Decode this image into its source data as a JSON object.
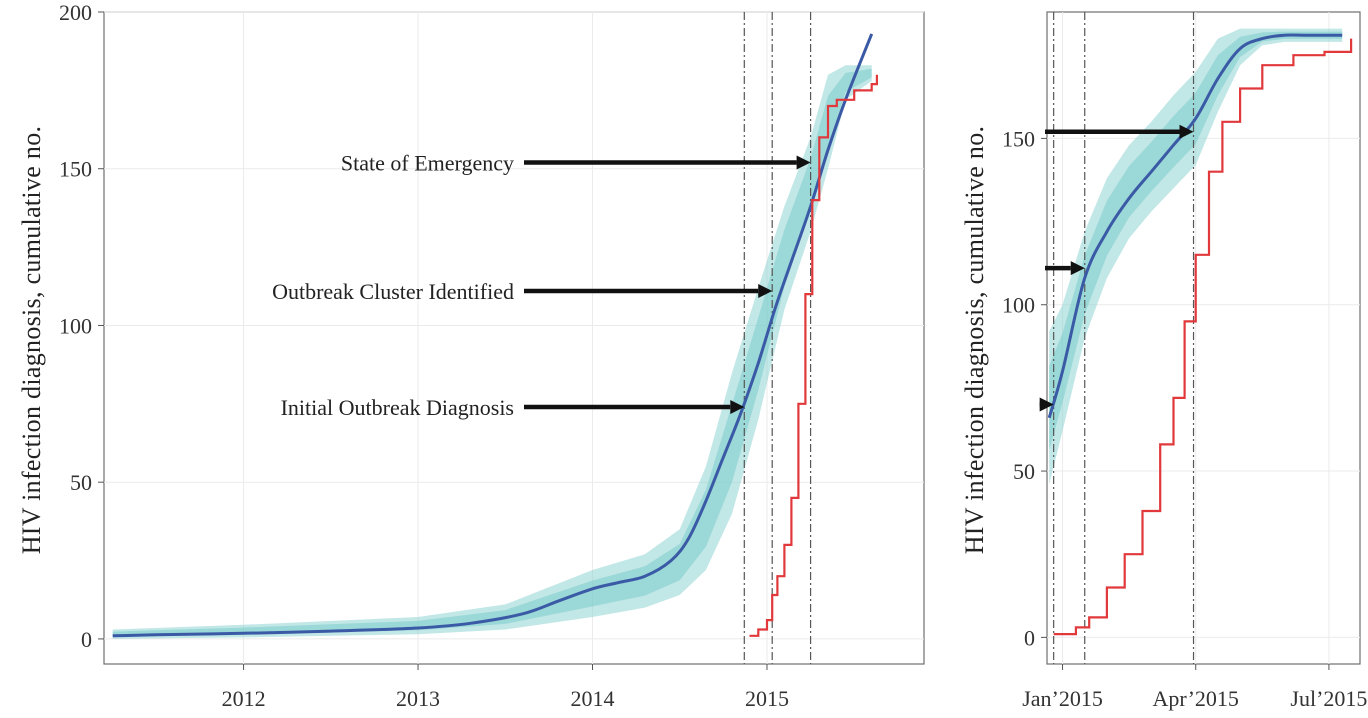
{
  "chart_data": [
    {
      "type": "line",
      "panel": "left",
      "ylabel": "HIV infection diagnosis, cumulative no.",
      "xlabel": "",
      "ylim": [
        -8,
        200
      ],
      "xlim": [
        2011.2,
        2015.9
      ],
      "grid": true,
      "x_ticks": [
        2012,
        2013,
        2014,
        2015
      ],
      "x_tick_labels": [
        "2012",
        "2013",
        "2014",
        "2015"
      ],
      "y_ticks": [
        0,
        50,
        100,
        150,
        200
      ],
      "y_tick_labels": [
        "0",
        "50",
        "100",
        "150",
        "200"
      ],
      "vertical_lines": [
        2014.87,
        2015.03,
        2015.25
      ],
      "series": [
        {
          "role": "estimated",
          "x": [
            2011.25,
            2011.5,
            2012.0,
            2012.5,
            2013.0,
            2013.3,
            2013.6,
            2013.8,
            2014.0,
            2014.15,
            2014.3,
            2014.45,
            2014.55,
            2014.65,
            2014.75,
            2014.85,
            2014.95,
            2015.05,
            2015.15,
            2015.25,
            2015.35,
            2015.45,
            2015.6
          ],
          "y": [
            1,
            1.3,
            1.8,
            2.5,
            3.5,
            5,
            8,
            12,
            16,
            18,
            20,
            25,
            32,
            44,
            58,
            72,
            88,
            106,
            122,
            138,
            156,
            172,
            193
          ]
        },
        {
          "role": "observed",
          "x": [
            2014.9,
            2014.95,
            2015.0,
            2015.03,
            2015.06,
            2015.1,
            2015.14,
            2015.18,
            2015.22,
            2015.26,
            2015.3,
            2015.35,
            2015.4,
            2015.5,
            2015.6,
            2015.63
          ],
          "y": [
            1,
            3,
            6,
            14,
            20,
            30,
            45,
            75,
            110,
            140,
            160,
            170,
            172,
            175,
            177,
            180
          ]
        }
      ],
      "uncertainty_band": {
        "x": [
          2011.25,
          2012.0,
          2013.0,
          2013.5,
          2014.0,
          2014.3,
          2014.5,
          2014.65,
          2014.8,
          2014.95,
          2015.1,
          2015.25,
          2015.35,
          2015.45,
          2015.6
        ],
        "lower": [
          0,
          0.5,
          1.5,
          3,
          7,
          10,
          14,
          22,
          40,
          70,
          105,
          130,
          150,
          172,
          178
        ],
        "upper": [
          3,
          4.5,
          7,
          11,
          22,
          27,
          35,
          55,
          85,
          112,
          138,
          160,
          180,
          183,
          183
        ]
      },
      "annotations": [
        {
          "text": "State of Emergency",
          "x": 2015.25,
          "y": 152
        },
        {
          "text": "Outbreak Cluster Identified",
          "x": 2015.03,
          "y": 111
        },
        {
          "text": "Initial Outbreak Diagnosis",
          "x": 2014.87,
          "y": 74
        }
      ]
    },
    {
      "type": "line",
      "panel": "right",
      "ylabel": "HIV infection diagnosis, cumulative no.",
      "xlabel": "",
      "ylim": [
        -8,
        188
      ],
      "xlim": [
        -0.35,
        6.7
      ],
      "grid": true,
      "x_ticks": [
        0,
        3,
        6
      ],
      "x_tick_labels": [
        "Jan’2015",
        "Apr’2015",
        "Jul’2015"
      ],
      "y_ticks": [
        0,
        50,
        100,
        150
      ],
      "y_tick_labels": [
        "0",
        "50",
        "100",
        "150"
      ],
      "vertical_lines": [
        -0.2,
        0.5,
        2.95
      ],
      "series": [
        {
          "role": "estimated",
          "x": [
            -0.3,
            0.0,
            0.5,
            1.0,
            1.5,
            2.0,
            2.5,
            3.0,
            3.5,
            4.0,
            4.5,
            5.0,
            5.5,
            6.0,
            6.3
          ],
          "y": [
            66,
            80,
            108,
            122,
            132,
            140,
            148,
            156,
            168,
            177,
            180,
            181,
            181,
            181,
            181
          ]
        },
        {
          "role": "observed",
          "x": [
            -0.2,
            0.3,
            0.6,
            1.0,
            1.4,
            1.8,
            2.2,
            2.5,
            2.75,
            3.0,
            3.3,
            3.6,
            4.0,
            4.5,
            5.2,
            5.9,
            6.5
          ],
          "y": [
            1,
            3,
            6,
            15,
            25,
            38,
            58,
            72,
            95,
            115,
            140,
            155,
            165,
            172,
            175,
            176,
            180
          ]
        }
      ],
      "uncertainty_band": {
        "x": [
          -0.3,
          0.0,
          0.5,
          1.0,
          1.5,
          2.0,
          2.5,
          3.0,
          3.5,
          4.0,
          4.5,
          5.0,
          6.0,
          6.3
        ],
        "lower": [
          46,
          62,
          90,
          108,
          120,
          128,
          135,
          142,
          158,
          172,
          178,
          179,
          179,
          179
        ],
        "upper": [
          92,
          100,
          122,
          138,
          148,
          155,
          163,
          170,
          180,
          183,
          183,
          183,
          183,
          183
        ]
      },
      "annotations": [
        {
          "text": "",
          "x": -0.2,
          "y": 70
        },
        {
          "text": "",
          "x": 0.5,
          "y": 111
        },
        {
          "text": "",
          "x": 2.95,
          "y": 152
        }
      ]
    }
  ]
}
